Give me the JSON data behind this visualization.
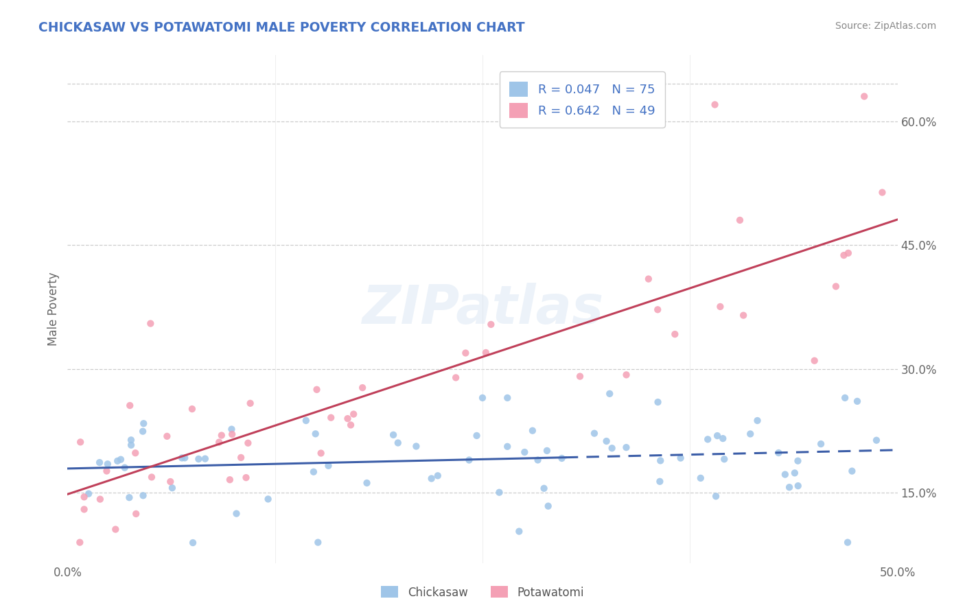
{
  "title": "CHICKASAW VS POTAWATOMI MALE POVERTY CORRELATION CHART",
  "source": "Source: ZipAtlas.com",
  "ylabel": "Male Poverty",
  "y_tick_labels": [
    "15.0%",
    "30.0%",
    "45.0%",
    "60.0%"
  ],
  "y_tick_values": [
    0.15,
    0.3,
    0.45,
    0.6
  ],
  "x_range": [
    0.0,
    0.5
  ],
  "y_range": [
    0.065,
    0.68
  ],
  "chickasaw_color": "#9fc5e8",
  "potawatomi_color": "#f4a0b5",
  "chickasaw_line_color": "#3c5ea8",
  "potawatomi_line_color": "#c0405a",
  "watermark": "ZIPatlas",
  "chickasaw_R": 0.047,
  "chickasaw_N": 75,
  "potawatomi_R": 0.642,
  "potawatomi_N": 49,
  "grid_color": "#cccccc",
  "background_color": "#ffffff"
}
